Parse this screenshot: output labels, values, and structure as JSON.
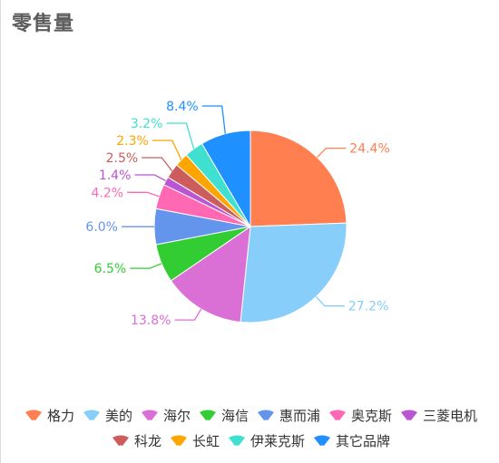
{
  "chart_data": {
    "type": "pie",
    "title": "零售量",
    "legend_position": "bottom",
    "slices": [
      {
        "name": "格力",
        "value": 24.4,
        "label": "24.4%",
        "color": "#ff7f50"
      },
      {
        "name": "美的",
        "value": 27.2,
        "label": "27.2%",
        "color": "#87cefa"
      },
      {
        "name": "海尔",
        "value": 13.8,
        "label": "13.8%",
        "color": "#da70d6"
      },
      {
        "name": "海信",
        "value": 6.5,
        "label": "6.5%",
        "color": "#32cd32"
      },
      {
        "name": "惠而浦",
        "value": 6.0,
        "label": "6.0%",
        "color": "#6495ed"
      },
      {
        "name": "奥克斯",
        "value": 4.2,
        "label": "4.2%",
        "color": "#ff69b4"
      },
      {
        "name": "三菱电机",
        "value": 1.4,
        "label": "1.4%",
        "color": "#ba55d3"
      },
      {
        "name": "科龙",
        "value": 2.5,
        "label": "2.5%",
        "color": "#cd5c5c"
      },
      {
        "name": "长虹",
        "value": 2.3,
        "label": "2.3%",
        "color": "#ffa500"
      },
      {
        "name": "伊莱克斯",
        "value": 3.2,
        "label": "3.2%",
        "color": "#40e0d0"
      },
      {
        "name": "其它品牌",
        "value": 8.4,
        "label": "8.4%",
        "color": "#1e90ff"
      }
    ]
  }
}
